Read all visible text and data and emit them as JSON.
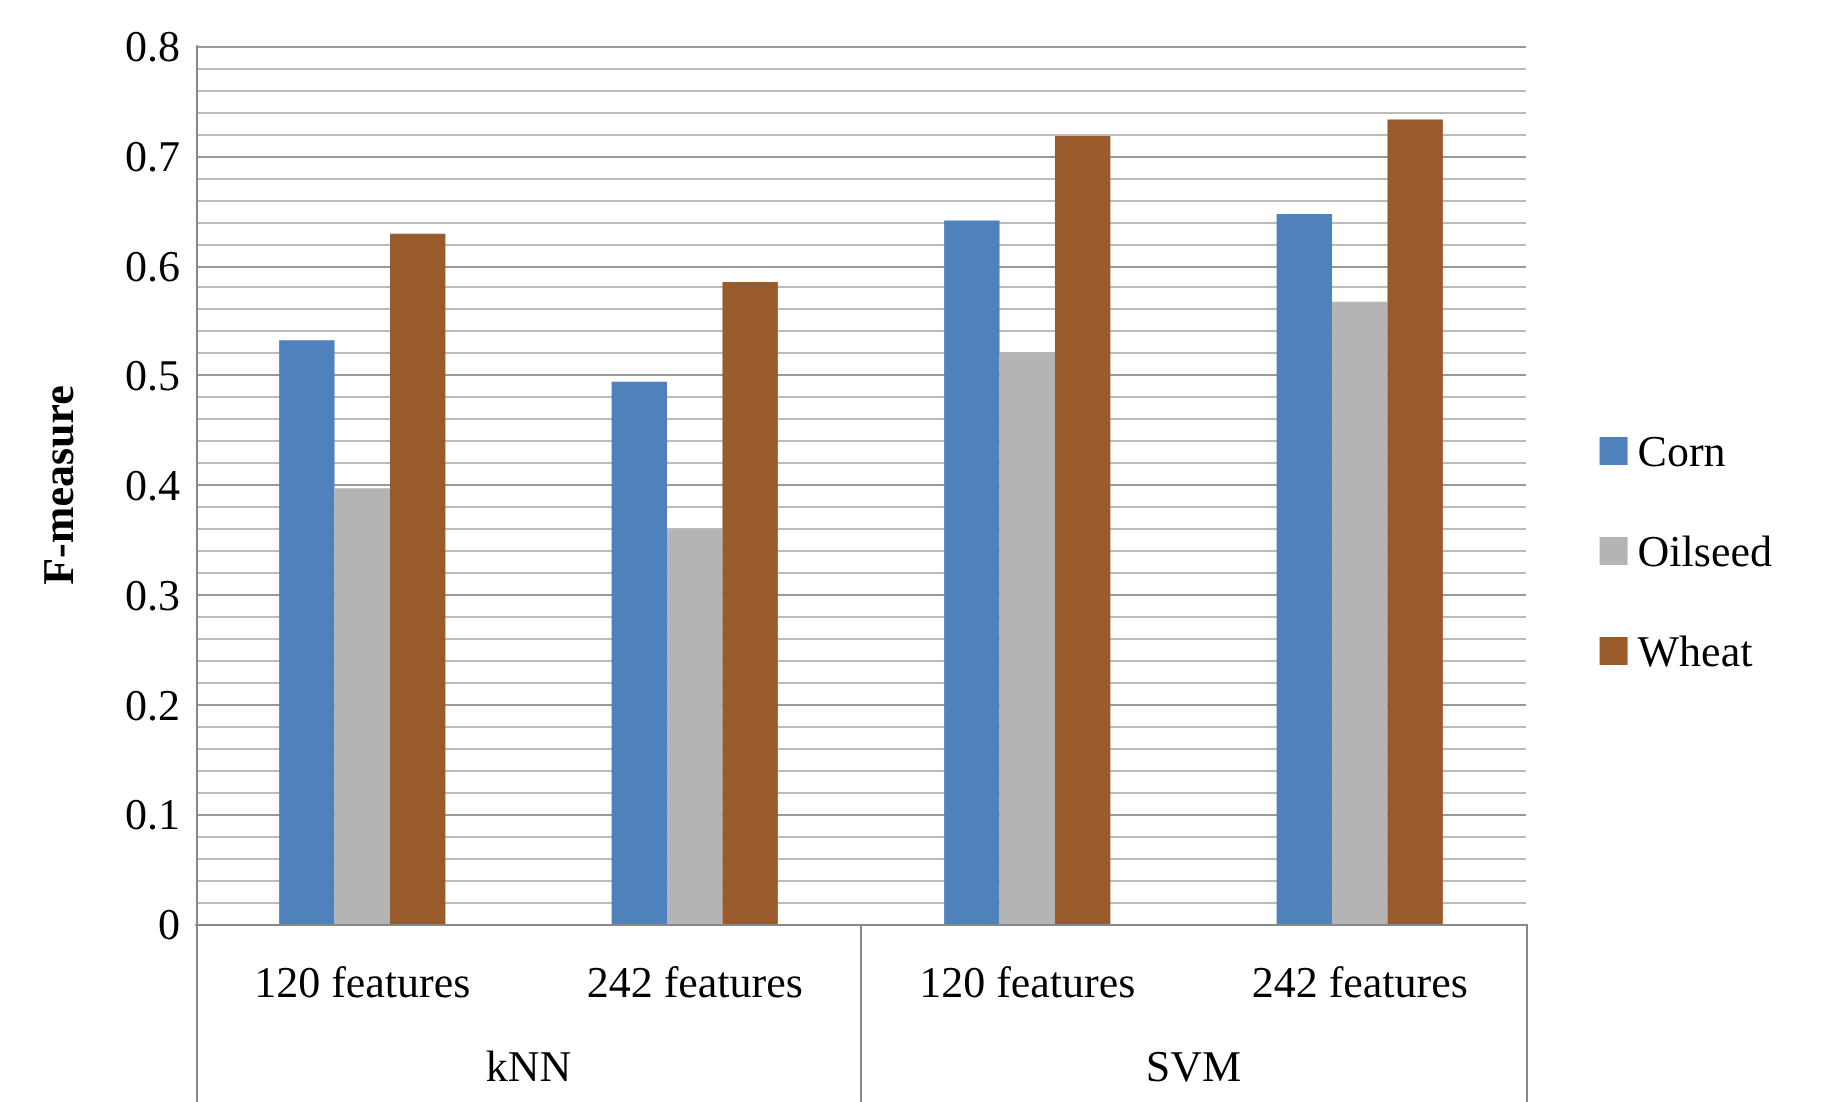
{
  "chart_data": {
    "type": "bar",
    "ylabel": "F-measure",
    "categories": [
      "120 features",
      "242 features",
      "120 features",
      "242 features"
    ],
    "annotations": [
      "kNN",
      "SVM"
    ],
    "series": [
      {
        "name": "Corn",
        "color": "#4f81bd",
        "values": [
          0.532,
          0.494,
          0.641,
          0.647
        ]
      },
      {
        "name": "Oilseed",
        "color": "#b4b4b4",
        "values": [
          0.397,
          0.359,
          0.521,
          0.567
        ]
      },
      {
        "name": "Wheat",
        "color": "#9a5b2c",
        "values": [
          0.629,
          0.585,
          0.718,
          0.733
        ]
      }
    ],
    "ylim": [
      0,
      0.8
    ],
    "yticks": [
      0,
      0.1,
      0.2,
      0.3,
      0.4,
      0.5,
      0.6,
      0.7,
      0.8
    ],
    "grid": "y",
    "legend": "right"
  }
}
